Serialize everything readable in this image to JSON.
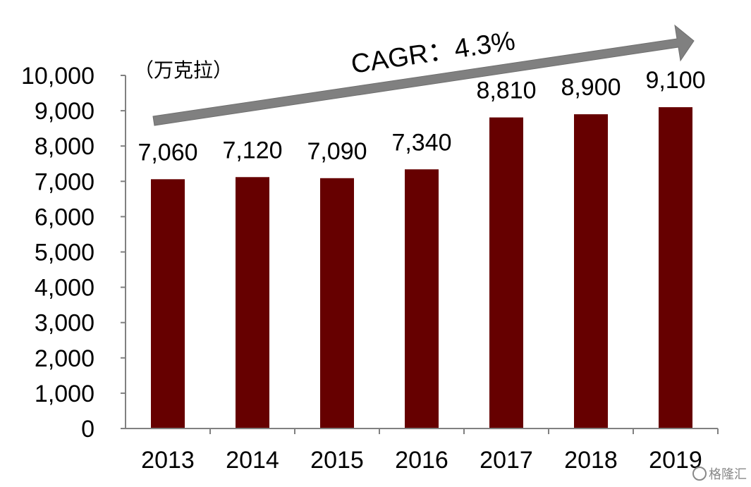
{
  "chart_data": {
    "type": "bar",
    "categories": [
      "2013",
      "2014",
      "2015",
      "2016",
      "2017",
      "2018",
      "2019"
    ],
    "values": [
      7060,
      7120,
      7090,
      7340,
      8810,
      8900,
      9100
    ],
    "data_labels": [
      "7,060",
      "7,120",
      "7,090",
      "7,340",
      "8,810",
      "8,900",
      "9,100"
    ],
    "y_ticks": [
      "0",
      "1,000",
      "2,000",
      "3,000",
      "4,000",
      "5,000",
      "6,000",
      "7,000",
      "8,000",
      "9,000",
      "10,000"
    ],
    "ylim": [
      0,
      10000
    ],
    "unit": "（万克拉）",
    "annotation": "CAGR：4.3%",
    "grid": false,
    "legend": "none",
    "bar_color": "#660000",
    "arrow_color": "#808080"
  },
  "watermark": "格隆汇"
}
